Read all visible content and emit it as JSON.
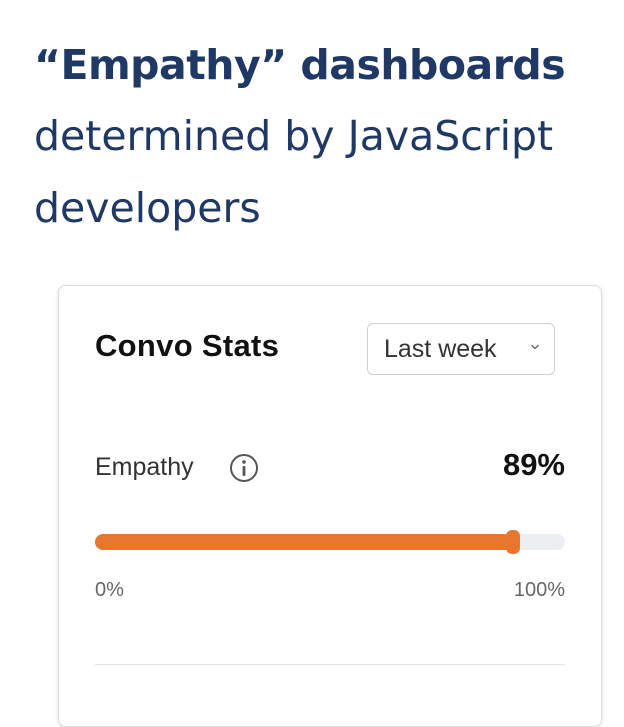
{
  "headline": {
    "bold": "“Empathy” dashboards",
    "line2": "determined by JavaScript",
    "line3": "developers"
  },
  "card": {
    "title": "Convo Stats",
    "period": {
      "selected": "Last week",
      "icon": "chevron-down-icon"
    },
    "metric": {
      "name": "Empathy",
      "info_icon": "info-icon",
      "value_label": "89%",
      "progress_fraction": 0.89,
      "min_label": "0%",
      "max_label": "100%"
    }
  },
  "colors": {
    "headline": "#1f3864",
    "progress_fill": "#e8772e",
    "progress_track": "#eceef2"
  }
}
